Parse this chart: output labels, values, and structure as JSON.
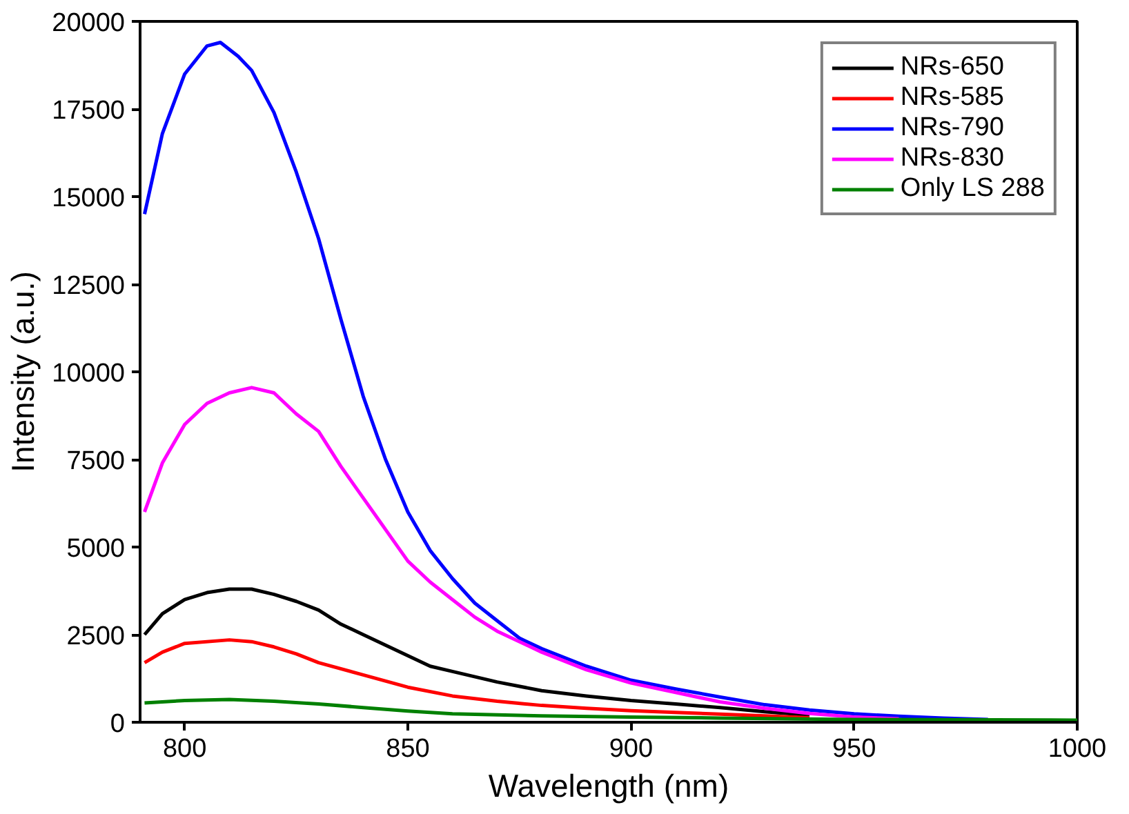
{
  "chart_data": {
    "type": "line",
    "xlabel": "Wavelength (nm)",
    "ylabel": "Intensity (a.u.)",
    "xlim": [
      790,
      1000
    ],
    "xticks": [
      800,
      850,
      900,
      950,
      1000
    ],
    "ylim": [
      0,
      20000
    ],
    "yticks": [
      0,
      2500,
      5000,
      7500,
      10000,
      12500,
      15000,
      17500,
      20000
    ],
    "grid": false,
    "legend": "top right",
    "line_style": "solid",
    "marker": "none",
    "series": [
      {
        "name": "NRs-650",
        "color": "#000000",
        "x": [
          791,
          795,
          800,
          805,
          810,
          815,
          820,
          825,
          830,
          835,
          840,
          845,
          850,
          855,
          860,
          870,
          880,
          890,
          900,
          910,
          920,
          930,
          940
        ],
        "values": [
          2500,
          3100,
          3500,
          3700,
          3800,
          3800,
          3650,
          3450,
          3200,
          2800,
          2500,
          2200,
          1900,
          1600,
          1450,
          1150,
          900,
          750,
          620,
          520,
          420,
          300,
          200
        ]
      },
      {
        "name": "NRs-585",
        "color": "#ff0000",
        "x": [
          791,
          795,
          800,
          810,
          815,
          820,
          825,
          830,
          840,
          850,
          860,
          870,
          880,
          890,
          900,
          910,
          920,
          930,
          940
        ],
        "values": [
          1700,
          2000,
          2250,
          2350,
          2300,
          2150,
          1950,
          1700,
          1350,
          1000,
          750,
          600,
          480,
          400,
          330,
          280,
          230,
          180,
          130
        ]
      },
      {
        "name": "NRs-790",
        "color": "#0000ff",
        "x": [
          791,
          795,
          800,
          805,
          808,
          812,
          815,
          820,
          825,
          830,
          835,
          840,
          845,
          850,
          855,
          860,
          865,
          870,
          875,
          880,
          890,
          900,
          910,
          920,
          930,
          940,
          950,
          960,
          970,
          980
        ],
        "values": [
          14500,
          16800,
          18500,
          19300,
          19400,
          19000,
          18600,
          17400,
          15700,
          13800,
          11500,
          9300,
          7500,
          6000,
          4900,
          4100,
          3400,
          2900,
          2400,
          2100,
          1600,
          1200,
          950,
          720,
          500,
          350,
          240,
          170,
          120,
          80
        ]
      },
      {
        "name": "NRs-830",
        "color": "#ff00ff",
        "x": [
          791,
          795,
          800,
          805,
          810,
          815,
          820,
          825,
          830,
          835,
          840,
          845,
          850,
          855,
          860,
          865,
          870,
          880,
          890,
          900,
          910,
          920,
          930,
          940,
          950,
          960
        ],
        "values": [
          6000,
          7400,
          8500,
          9100,
          9400,
          9550,
          9400,
          8800,
          8300,
          7300,
          6400,
          5500,
          4600,
          4000,
          3500,
          3000,
          2600,
          2000,
          1500,
          1120,
          850,
          580,
          400,
          250,
          150,
          100
        ]
      },
      {
        "name": "Only LS 288",
        "color": "#008000",
        "x": [
          791,
          800,
          810,
          820,
          830,
          840,
          850,
          860,
          880,
          900,
          920,
          950,
          1000
        ],
        "values": [
          550,
          620,
          650,
          600,
          520,
          420,
          320,
          240,
          180,
          150,
          120,
          80,
          60
        ]
      }
    ]
  }
}
